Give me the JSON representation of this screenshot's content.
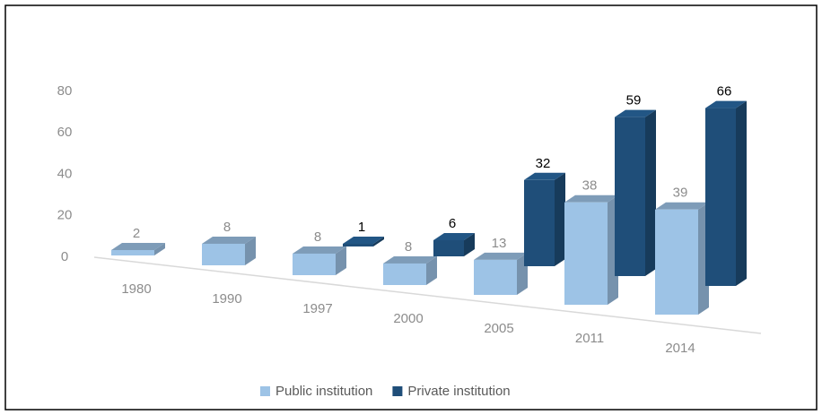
{
  "chart_data": {
    "type": "bar3d",
    "categories": [
      "1980",
      "1990",
      "1997",
      "2000",
      "2005",
      "2011",
      "2014"
    ],
    "series": [
      {
        "name": "Public institution",
        "color": "#9dc3e6",
        "values": [
          2,
          8,
          8,
          8,
          13,
          38,
          39
        ]
      },
      {
        "name": "Private institution",
        "color": "#1f4e79",
        "values": [
          null,
          null,
          1,
          6,
          32,
          59,
          66
        ]
      }
    ],
    "ylim": [
      0,
      80
    ],
    "yticks": [
      0,
      20,
      40,
      60,
      80
    ],
    "legend": "bottom"
  }
}
